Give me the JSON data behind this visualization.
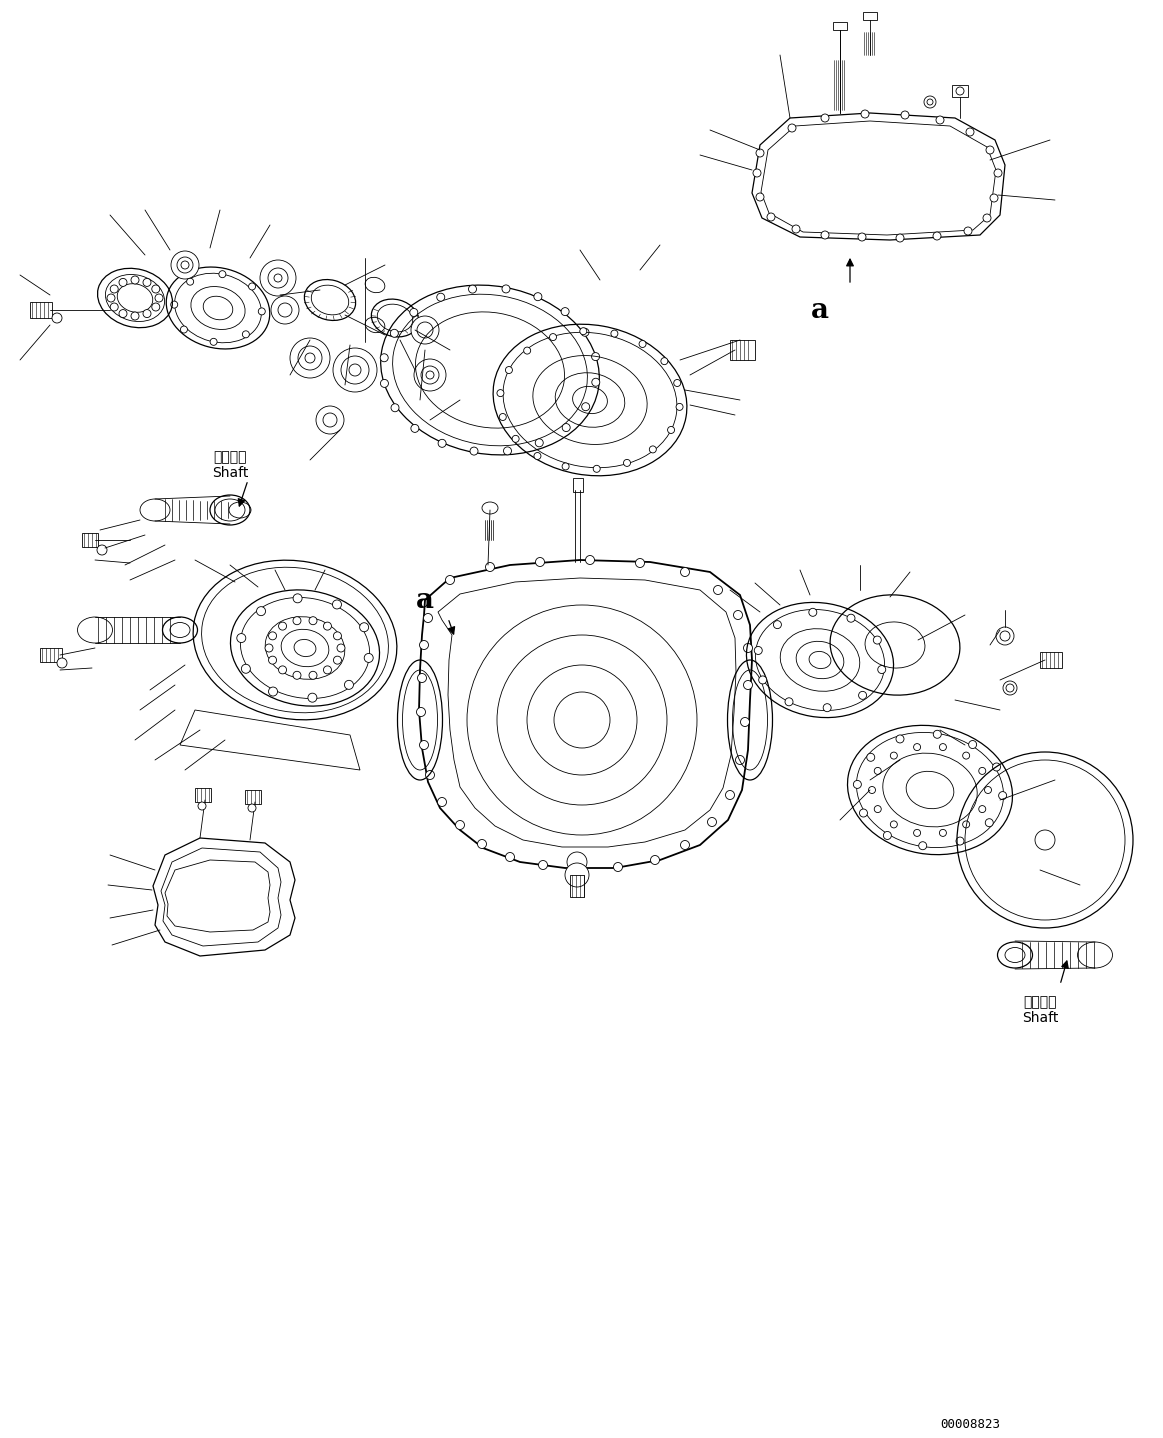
{
  "background_color": "#ffffff",
  "line_color": "#000000",
  "fig_width": 11.63,
  "fig_height": 14.38,
  "dpi": 100,
  "label_shaft_upper": "シャフト\nShaft",
  "label_shaft_lower": "シャフト\nShaft",
  "label_a_upper": "a",
  "label_a_lower": "a",
  "doc_number": "00008823",
  "lw_thin": 0.6,
  "lw_med": 0.9,
  "lw_thick": 1.3
}
